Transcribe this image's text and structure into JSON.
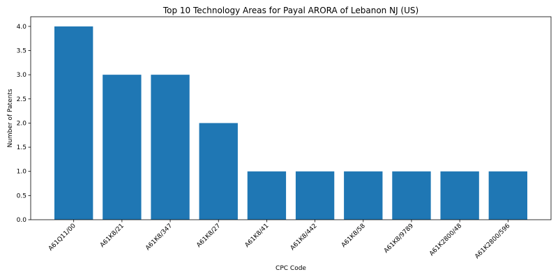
{
  "chart_data": {
    "type": "bar",
    "title": "Top 10 Technology Areas for Payal ARORA of Lebanon NJ (US)",
    "xlabel": "CPC Code",
    "ylabel": "Number of Patents",
    "categories": [
      "A61Q11/00",
      "A61K8/21",
      "A61K8/347",
      "A61K8/27",
      "A61K8/41",
      "A61K8/442",
      "A61K8/58",
      "A61K8/9789",
      "A61K2800/48",
      "A61K2800/596"
    ],
    "values": [
      4,
      3,
      3,
      2,
      1,
      1,
      1,
      1,
      1,
      1
    ],
    "ylim": [
      0,
      4.2
    ],
    "yticks": [
      0.0,
      0.5,
      1.0,
      1.5,
      2.0,
      2.5,
      3.0,
      3.5,
      4.0
    ],
    "ytick_labels": [
      "0.0",
      "0.5",
      "1.0",
      "1.5",
      "2.0",
      "2.5",
      "3.0",
      "3.5",
      "4.0"
    ],
    "bar_color": "#1f77b4",
    "grid": false,
    "legend": "none"
  }
}
